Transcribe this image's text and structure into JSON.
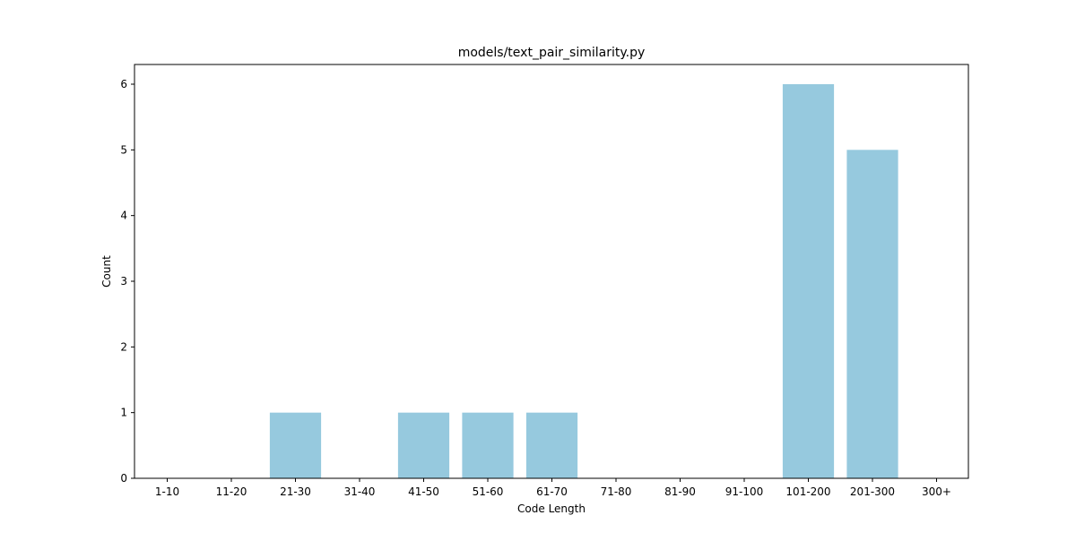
{
  "chart_data": {
    "type": "bar",
    "title": "models/text_pair_similarity.py",
    "xlabel": "Code Length",
    "ylabel": "Count",
    "categories": [
      "1-10",
      "11-20",
      "21-30",
      "31-40",
      "41-50",
      "51-60",
      "61-70",
      "71-80",
      "81-90",
      "91-100",
      "101-200",
      "201-300",
      "300+"
    ],
    "values": [
      0,
      0,
      1,
      0,
      1,
      1,
      1,
      0,
      0,
      0,
      6,
      5,
      0
    ],
    "ylim": [
      0,
      6.3
    ],
    "yticks": [
      0,
      1,
      2,
      3,
      4,
      5,
      6
    ],
    "bar_color": "#96c9de",
    "grid": false,
    "legend": "none"
  }
}
